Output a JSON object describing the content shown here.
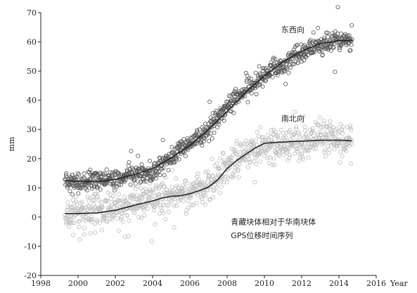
{
  "chart_data": {
    "type": "scatter",
    "title": "",
    "xlabel": "Year",
    "ylabel": "mm",
    "xlim": [
      1998,
      2016
    ],
    "ylim": [
      -20,
      70
    ],
    "x_ticks": [
      1998,
      2000,
      2002,
      2004,
      2006,
      2008,
      2010,
      2012,
      2014,
      2016
    ],
    "y_ticks": [
      -20,
      -10,
      0,
      10,
      20,
      30,
      40,
      50,
      60,
      70
    ],
    "x_tick_labels": [
      "1998",
      "2000",
      "2002",
      "2004",
      "2006",
      "2008",
      "2010",
      "2012",
      "2014",
      "2016"
    ],
    "y_tick_labels": [
      "-20",
      "-10",
      "0",
      "10",
      "20",
      "30",
      "40",
      "50",
      "60",
      "70"
    ],
    "grid": false,
    "series": [
      {
        "name": "东西向",
        "color": "#555555",
        "marker": "open-circle",
        "x": [
          1999.3,
          2000,
          2001,
          2002,
          2003,
          2004,
          2004.5,
          2005,
          2005.5,
          2006,
          2006.5,
          2007,
          2007.5,
          2008,
          2008.5,
          2009,
          2009.5,
          2010,
          2010.5,
          2011,
          2011.5,
          2012,
          2012.5,
          2013,
          2013.5,
          2014,
          2014.7
        ],
        "y": [
          12.5,
          12,
          12.5,
          13,
          14.5,
          16,
          17.5,
          20,
          23,
          25,
          28,
          30.5,
          34,
          38,
          41.5,
          43.5,
          46,
          48.5,
          51,
          52,
          54.5,
          56,
          57.5,
          58.5,
          60.5,
          61,
          60
        ]
      },
      {
        "name": "南北向",
        "color": "#bdbdbd",
        "marker": "open-circle",
        "x": [
          1999.3,
          2000,
          2001,
          2002,
          2003,
          2004,
          2005,
          2005.5,
          2006,
          2006.5,
          2007,
          2007.5,
          2008,
          2008.5,
          2009,
          2009.5,
          2010,
          2010.5,
          2011,
          2011.5,
          2012,
          2012.5,
          2013,
          2013.5,
          2014,
          2014.7
        ],
        "y": [
          1,
          1.5,
          2,
          3,
          4.5,
          6,
          7.5,
          7.5,
          8.5,
          9.5,
          11,
          14,
          17,
          20,
          22,
          23.5,
          24.5,
          25,
          24.5,
          25.5,
          25.5,
          26.5,
          26.5,
          27.5,
          26.5,
          26
        ]
      }
    ],
    "fit_lines": [
      {
        "series": "东西向",
        "color": "#222222",
        "x": [
          1999.3,
          2000,
          2001,
          2002,
          2003,
          2004,
          2005,
          2006,
          2007,
          2008,
          2009,
          2010,
          2011,
          2012,
          2013,
          2014,
          2014.7
        ],
        "y": [
          12.5,
          12.2,
          12.1,
          12.9,
          14.5,
          16.6,
          20.3,
          24.5,
          30,
          36.2,
          42.7,
          48.4,
          53.1,
          56.8,
          59.4,
          60.4,
          60.5
        ]
      },
      {
        "series": "南北向",
        "color": "#222222",
        "x": [
          1999.3,
          2000,
          2001,
          2002,
          2003,
          2004,
          2004.5,
          2005,
          2005.5,
          2006,
          2006.5,
          2007,
          2007.5,
          2008,
          2008.5,
          2009,
          2009.5,
          2010,
          2011,
          2012,
          2013,
          2014,
          2014.7
        ],
        "y": [
          1.2,
          1.2,
          1.4,
          2.3,
          4,
          5.5,
          6.5,
          7.1,
          7.3,
          8,
          9,
          10.3,
          12.8,
          16.6,
          19.3,
          21.5,
          23.6,
          25.3,
          25.7,
          26,
          26.3,
          26.3,
          26.1
        ]
      }
    ],
    "annotations": [
      {
        "text": "东西向",
        "x": 2010.9,
        "y": 63.3
      },
      {
        "text": "南北向",
        "x": 2010.9,
        "y": 32.8
      },
      {
        "text": "青藏块体相对于华南块体",
        "x": 2008.2,
        "y": -2.6
      },
      {
        "text": "GPS位移时间序列",
        "x": 2008.2,
        "y": -7.2
      }
    ]
  }
}
